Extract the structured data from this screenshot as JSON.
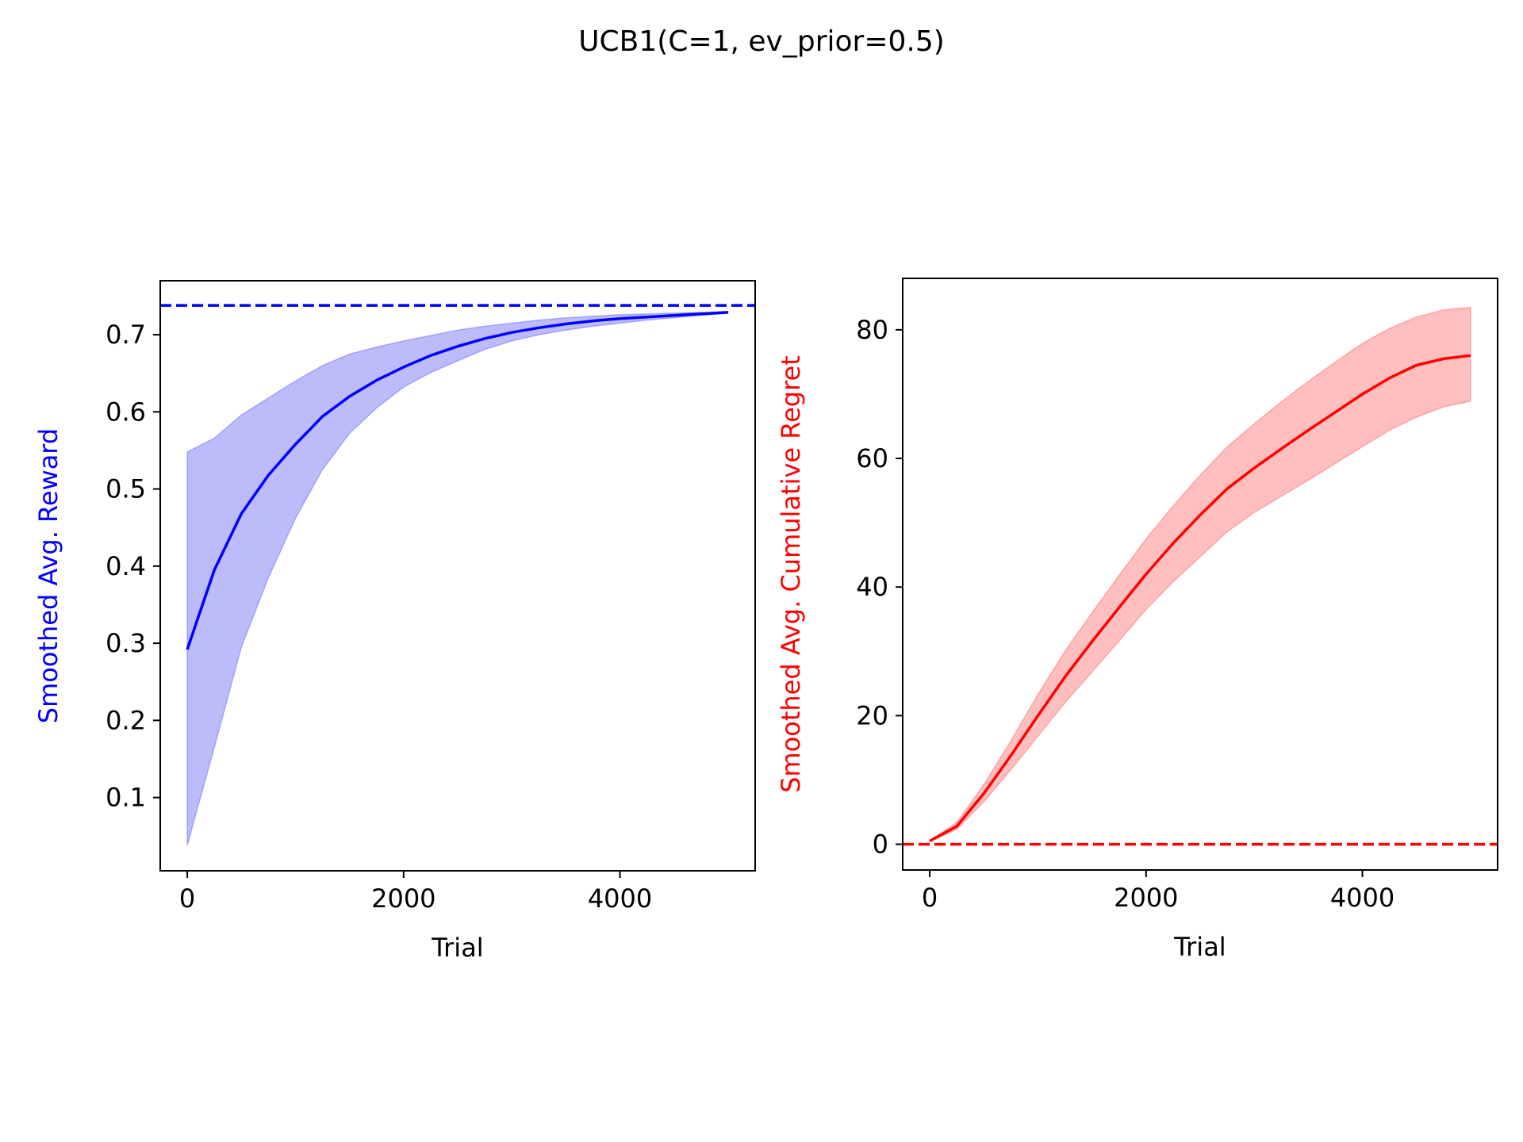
{
  "figure": {
    "title": "UCB1(C=1, ev_prior=0.5)"
  },
  "chart_data": [
    {
      "type": "line",
      "xlabel": "Trial",
      "ylabel": "Smoothed Avg. Reward",
      "ylabel_color": "#0000ff",
      "xlim": [
        -250,
        5250
      ],
      "ylim": [
        0.005,
        0.77
      ],
      "xticks": [
        0,
        2000,
        4000
      ],
      "yticks": [
        0.1,
        0.2,
        0.3,
        0.4,
        0.5,
        0.6,
        0.7
      ],
      "grid": false,
      "reference_line": {
        "y": 0.738,
        "style": "dashed",
        "color": "#0000ff"
      },
      "series": [
        {
          "color": "#0000ff",
          "band_color": "#bcbcfb",
          "x": [
            0,
            250,
            500,
            750,
            1000,
            1250,
            1500,
            1750,
            2000,
            2250,
            2500,
            2750,
            3000,
            3250,
            3500,
            3750,
            4000,
            4250,
            4500,
            4750,
            5000
          ],
          "mean": [
            0.292,
            0.395,
            0.468,
            0.518,
            0.558,
            0.594,
            0.62,
            0.641,
            0.658,
            0.673,
            0.685,
            0.695,
            0.703,
            0.709,
            0.714,
            0.718,
            0.721,
            0.723,
            0.725,
            0.727,
            0.729
          ],
          "upper": [
            0.548,
            0.566,
            0.596,
            0.618,
            0.64,
            0.66,
            0.675,
            0.684,
            0.692,
            0.699,
            0.706,
            0.711,
            0.715,
            0.719,
            0.722,
            0.724,
            0.726,
            0.727,
            0.728,
            0.729,
            0.73
          ],
          "lower": [
            0.038,
            0.165,
            0.295,
            0.385,
            0.462,
            0.525,
            0.572,
            0.605,
            0.632,
            0.651,
            0.666,
            0.681,
            0.692,
            0.7,
            0.706,
            0.711,
            0.715,
            0.719,
            0.722,
            0.725,
            0.728
          ]
        }
      ]
    },
    {
      "type": "line",
      "xlabel": "Trial",
      "ylabel": "Smoothed Avg. Cumulative Regret",
      "ylabel_color": "#ff0000",
      "xlim": [
        -250,
        5250
      ],
      "ylim": [
        -4,
        88
      ],
      "xticks": [
        0,
        2000,
        4000
      ],
      "yticks": [
        0,
        20,
        40,
        60,
        80
      ],
      "grid": false,
      "reference_line": {
        "y": 0,
        "style": "dashed",
        "color": "#ff0000"
      },
      "series": [
        {
          "color": "#ff0000",
          "band_color": "#ffbfbf",
          "x": [
            0,
            250,
            500,
            750,
            1000,
            1250,
            1500,
            1750,
            2000,
            2250,
            2500,
            2750,
            3000,
            3250,
            3500,
            3750,
            4000,
            4250,
            4500,
            4750,
            5000
          ],
          "mean": [
            0.5,
            2.8,
            7.9,
            13.8,
            20.0,
            26.0,
            31.5,
            36.8,
            42.0,
            46.8,
            51.2,
            55.3,
            58.5,
            61.5,
            64.4,
            67.2,
            70.0,
            72.5,
            74.5,
            75.5,
            76.0
          ],
          "upper": [
            0.6,
            3.4,
            9.3,
            16.1,
            23.3,
            30.0,
            36.0,
            41.8,
            47.5,
            52.6,
            57.4,
            61.8,
            65.4,
            68.8,
            72.0,
            75.0,
            77.9,
            80.2,
            82.0,
            83.1,
            83.5
          ],
          "lower": [
            0.4,
            2.3,
            6.6,
            11.6,
            16.8,
            22.0,
            26.8,
            31.6,
            36.5,
            40.8,
            44.7,
            48.6,
            51.6,
            54.1,
            56.6,
            59.2,
            61.8,
            64.4,
            66.4,
            68.0,
            68.9
          ]
        }
      ]
    }
  ]
}
